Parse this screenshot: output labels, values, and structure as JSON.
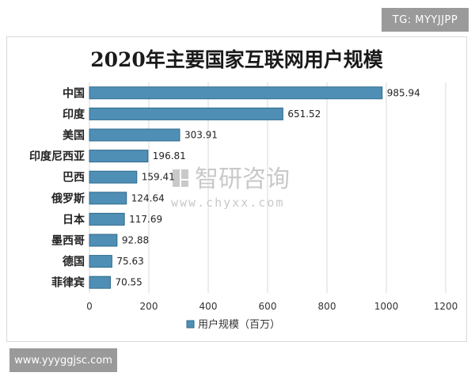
{
  "watermark_top": "TG: MYYJJPP",
  "watermark_bottom": "www.yyyggjsc.com",
  "watermark_center": {
    "brand": "智研咨询",
    "url": "www.chyxx.com"
  },
  "colors": {
    "bar": "#4f8fb5",
    "bar_edge": "#2f6a8c",
    "grid": "#d9d9d9"
  },
  "chart_data": {
    "type": "bar",
    "orientation": "horizontal",
    "title": "2020年主要国家互联网用户规模",
    "categories": [
      "中国",
      "印度",
      "美国",
      "印度尼西亚",
      "巴西",
      "俄罗斯",
      "日本",
      "墨西哥",
      "德国",
      "菲律宾"
    ],
    "series": [
      {
        "name": "用户规模（百万）",
        "values": [
          985.94,
          651.52,
          303.91,
          196.81,
          159.41,
          124.64,
          117.69,
          92.88,
          75.63,
          70.55
        ],
        "labels": [
          "985.94",
          "651.52",
          "303.91",
          "196.81",
          "159.41",
          "124.64",
          "117.69",
          "92.88",
          "75.63",
          "70.55"
        ]
      }
    ],
    "xlim": [
      0,
      1200
    ],
    "xticks": [
      "0",
      "200",
      "400",
      "600",
      "800",
      "1000",
      "1200"
    ],
    "xlabel": "",
    "ylabel": "",
    "grid": true,
    "legend": "bottom"
  }
}
